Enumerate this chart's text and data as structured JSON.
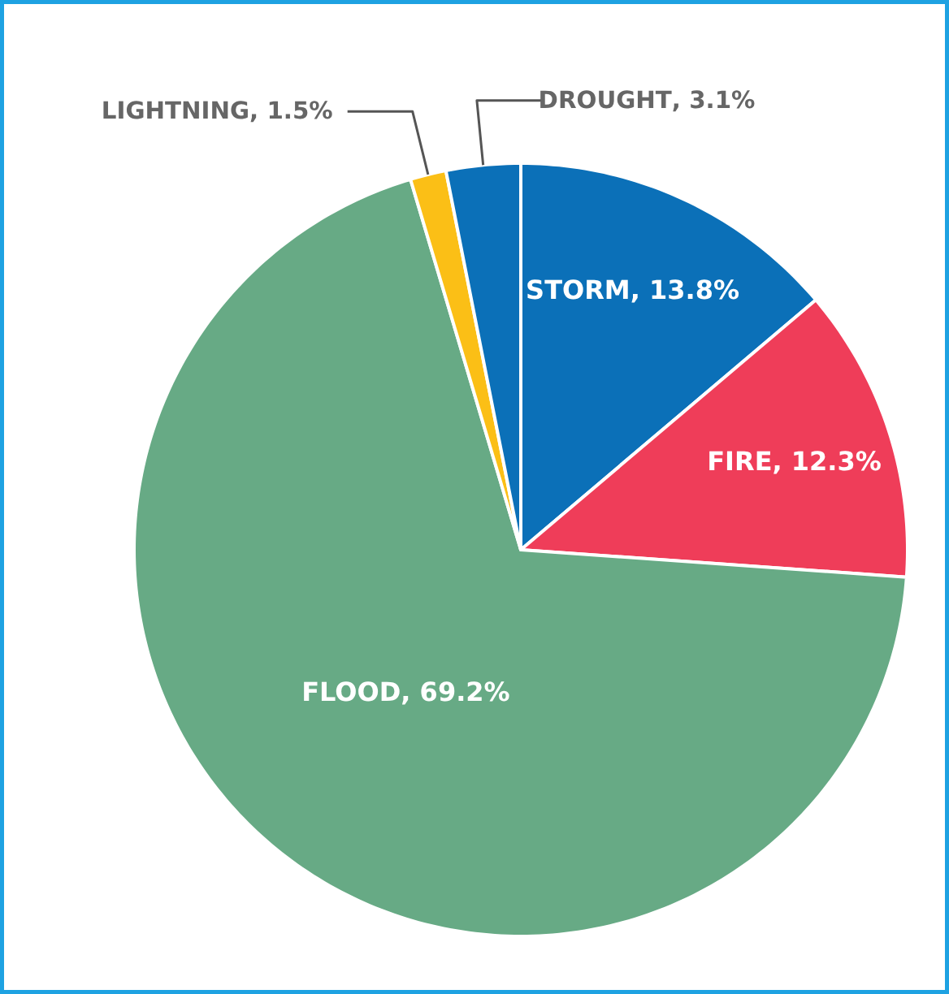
{
  "chart_data": {
    "type": "pie",
    "categories": [
      "STORM",
      "FIRE",
      "FLOOD",
      "LIGHTNING",
      "DROUGHT"
    ],
    "values": [
      13.8,
      12.3,
      69.2,
      1.5,
      3.1
    ],
    "colors": [
      "#0b70b8",
      "#ef3d59",
      "#67aa85",
      "#fbbf16",
      "#0b70b8"
    ],
    "value_labels": [
      ",  13.8%",
      ",  12.3%",
      ", 69.2%",
      " , 1.5%",
      " , 3.1%"
    ]
  }
}
